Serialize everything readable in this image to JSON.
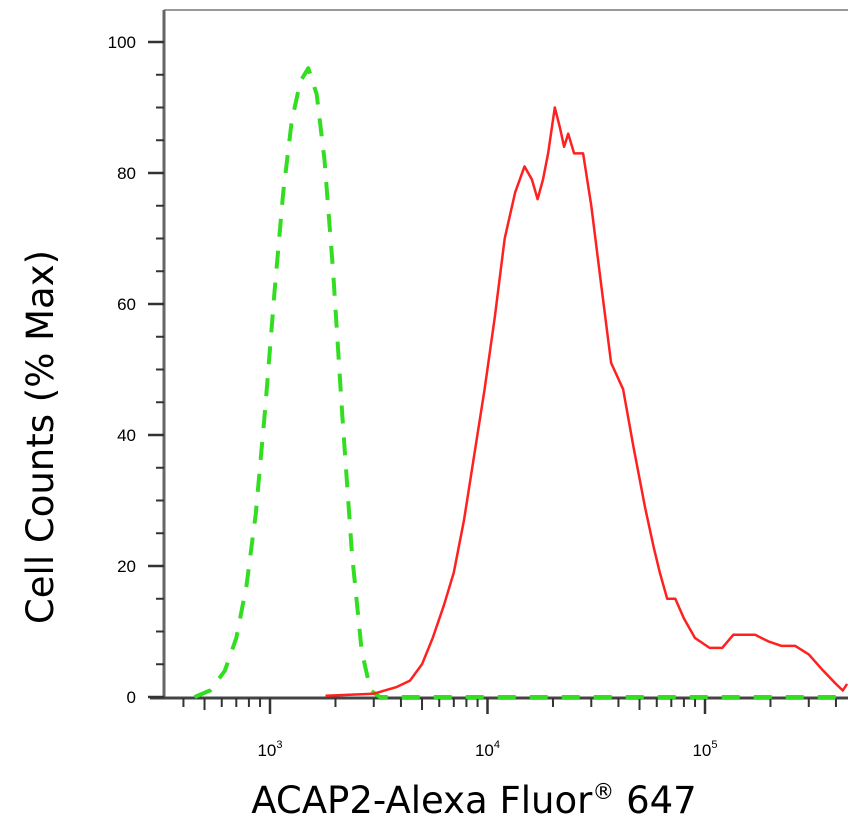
{
  "chart_data": {
    "type": "line",
    "x_scale": "log",
    "xlabel": "ACAP2-Alexa Fluor",
    "xlabel_superscript": "®",
    "xlabel_suffix": " 647",
    "ylabel": "Cell Counts (% Max)",
    "xlim": [
      300,
      450000
    ],
    "ylim": [
      0,
      100
    ],
    "x_ticks": [
      {
        "base": "10",
        "exp": "3",
        "value": 1000
      },
      {
        "base": "10",
        "exp": "4",
        "value": 10000
      },
      {
        "base": "10",
        "exp": "5",
        "value": 100000
      }
    ],
    "y_ticks": [
      {
        "label": "0",
        "value": 0
      },
      {
        "label": "20",
        "value": 20
      },
      {
        "label": "40",
        "value": 40
      },
      {
        "label": "60",
        "value": 60
      },
      {
        "label": "80",
        "value": 80
      },
      {
        "label": "100",
        "value": 100
      }
    ],
    "series": [
      {
        "style": "dashed",
        "color": "#33dd22",
        "points": [
          [
            300,
            0
          ],
          [
            450,
            0
          ],
          [
            530,
            1
          ],
          [
            620,
            4
          ],
          [
            700,
            9
          ],
          [
            780,
            17
          ],
          [
            860,
            28
          ],
          [
            950,
            44
          ],
          [
            1050,
            62
          ],
          [
            1150,
            77
          ],
          [
            1260,
            88
          ],
          [
            1380,
            94
          ],
          [
            1500,
            96
          ],
          [
            1640,
            92
          ],
          [
            1780,
            82
          ],
          [
            1950,
            65
          ],
          [
            2150,
            43
          ],
          [
            2380,
            22
          ],
          [
            2640,
            7
          ],
          [
            2900,
            1
          ],
          [
            3200,
            0
          ],
          [
            10000,
            0
          ],
          [
            100000,
            0
          ],
          [
            450000,
            0
          ]
        ]
      },
      {
        "style": "solid",
        "color": "#ff2020",
        "points": [
          [
            300,
            0
          ],
          [
            1800,
            0.2
          ],
          [
            3000,
            0.5
          ],
          [
            3800,
            1.5
          ],
          [
            4400,
            2.5
          ],
          [
            5000,
            5
          ],
          [
            5600,
            9
          ],
          [
            6300,
            14
          ],
          [
            7000,
            19
          ],
          [
            7800,
            27
          ],
          [
            8700,
            37
          ],
          [
            9700,
            47
          ],
          [
            10800,
            58
          ],
          [
            12000,
            70
          ],
          [
            13400,
            77
          ],
          [
            14800,
            81
          ],
          [
            16000,
            79
          ],
          [
            17000,
            76
          ],
          [
            18000,
            79
          ],
          [
            19000,
            83
          ],
          [
            20400,
            90
          ],
          [
            21500,
            87
          ],
          [
            22500,
            84
          ],
          [
            23500,
            86
          ],
          [
            25000,
            83
          ],
          [
            27500,
            83
          ],
          [
            30000,
            75
          ],
          [
            33000,
            64
          ],
          [
            37000,
            51
          ],
          [
            42000,
            47
          ],
          [
            47000,
            38
          ],
          [
            53000,
            29
          ],
          [
            58000,
            23
          ],
          [
            62000,
            19
          ],
          [
            67000,
            15
          ],
          [
            73000,
            15
          ],
          [
            80000,
            12
          ],
          [
            90000,
            9
          ],
          [
            105000,
            7.5
          ],
          [
            120000,
            7.5
          ],
          [
            135000,
            9.5
          ],
          [
            150000,
            9.5
          ],
          [
            170000,
            9.5
          ],
          [
            195000,
            8.5
          ],
          [
            225000,
            7.8
          ],
          [
            260000,
            7.8
          ],
          [
            300000,
            6.5
          ],
          [
            350000,
            4
          ],
          [
            400000,
            2
          ],
          [
            430000,
            1
          ],
          [
            450000,
            2
          ]
        ]
      }
    ]
  }
}
